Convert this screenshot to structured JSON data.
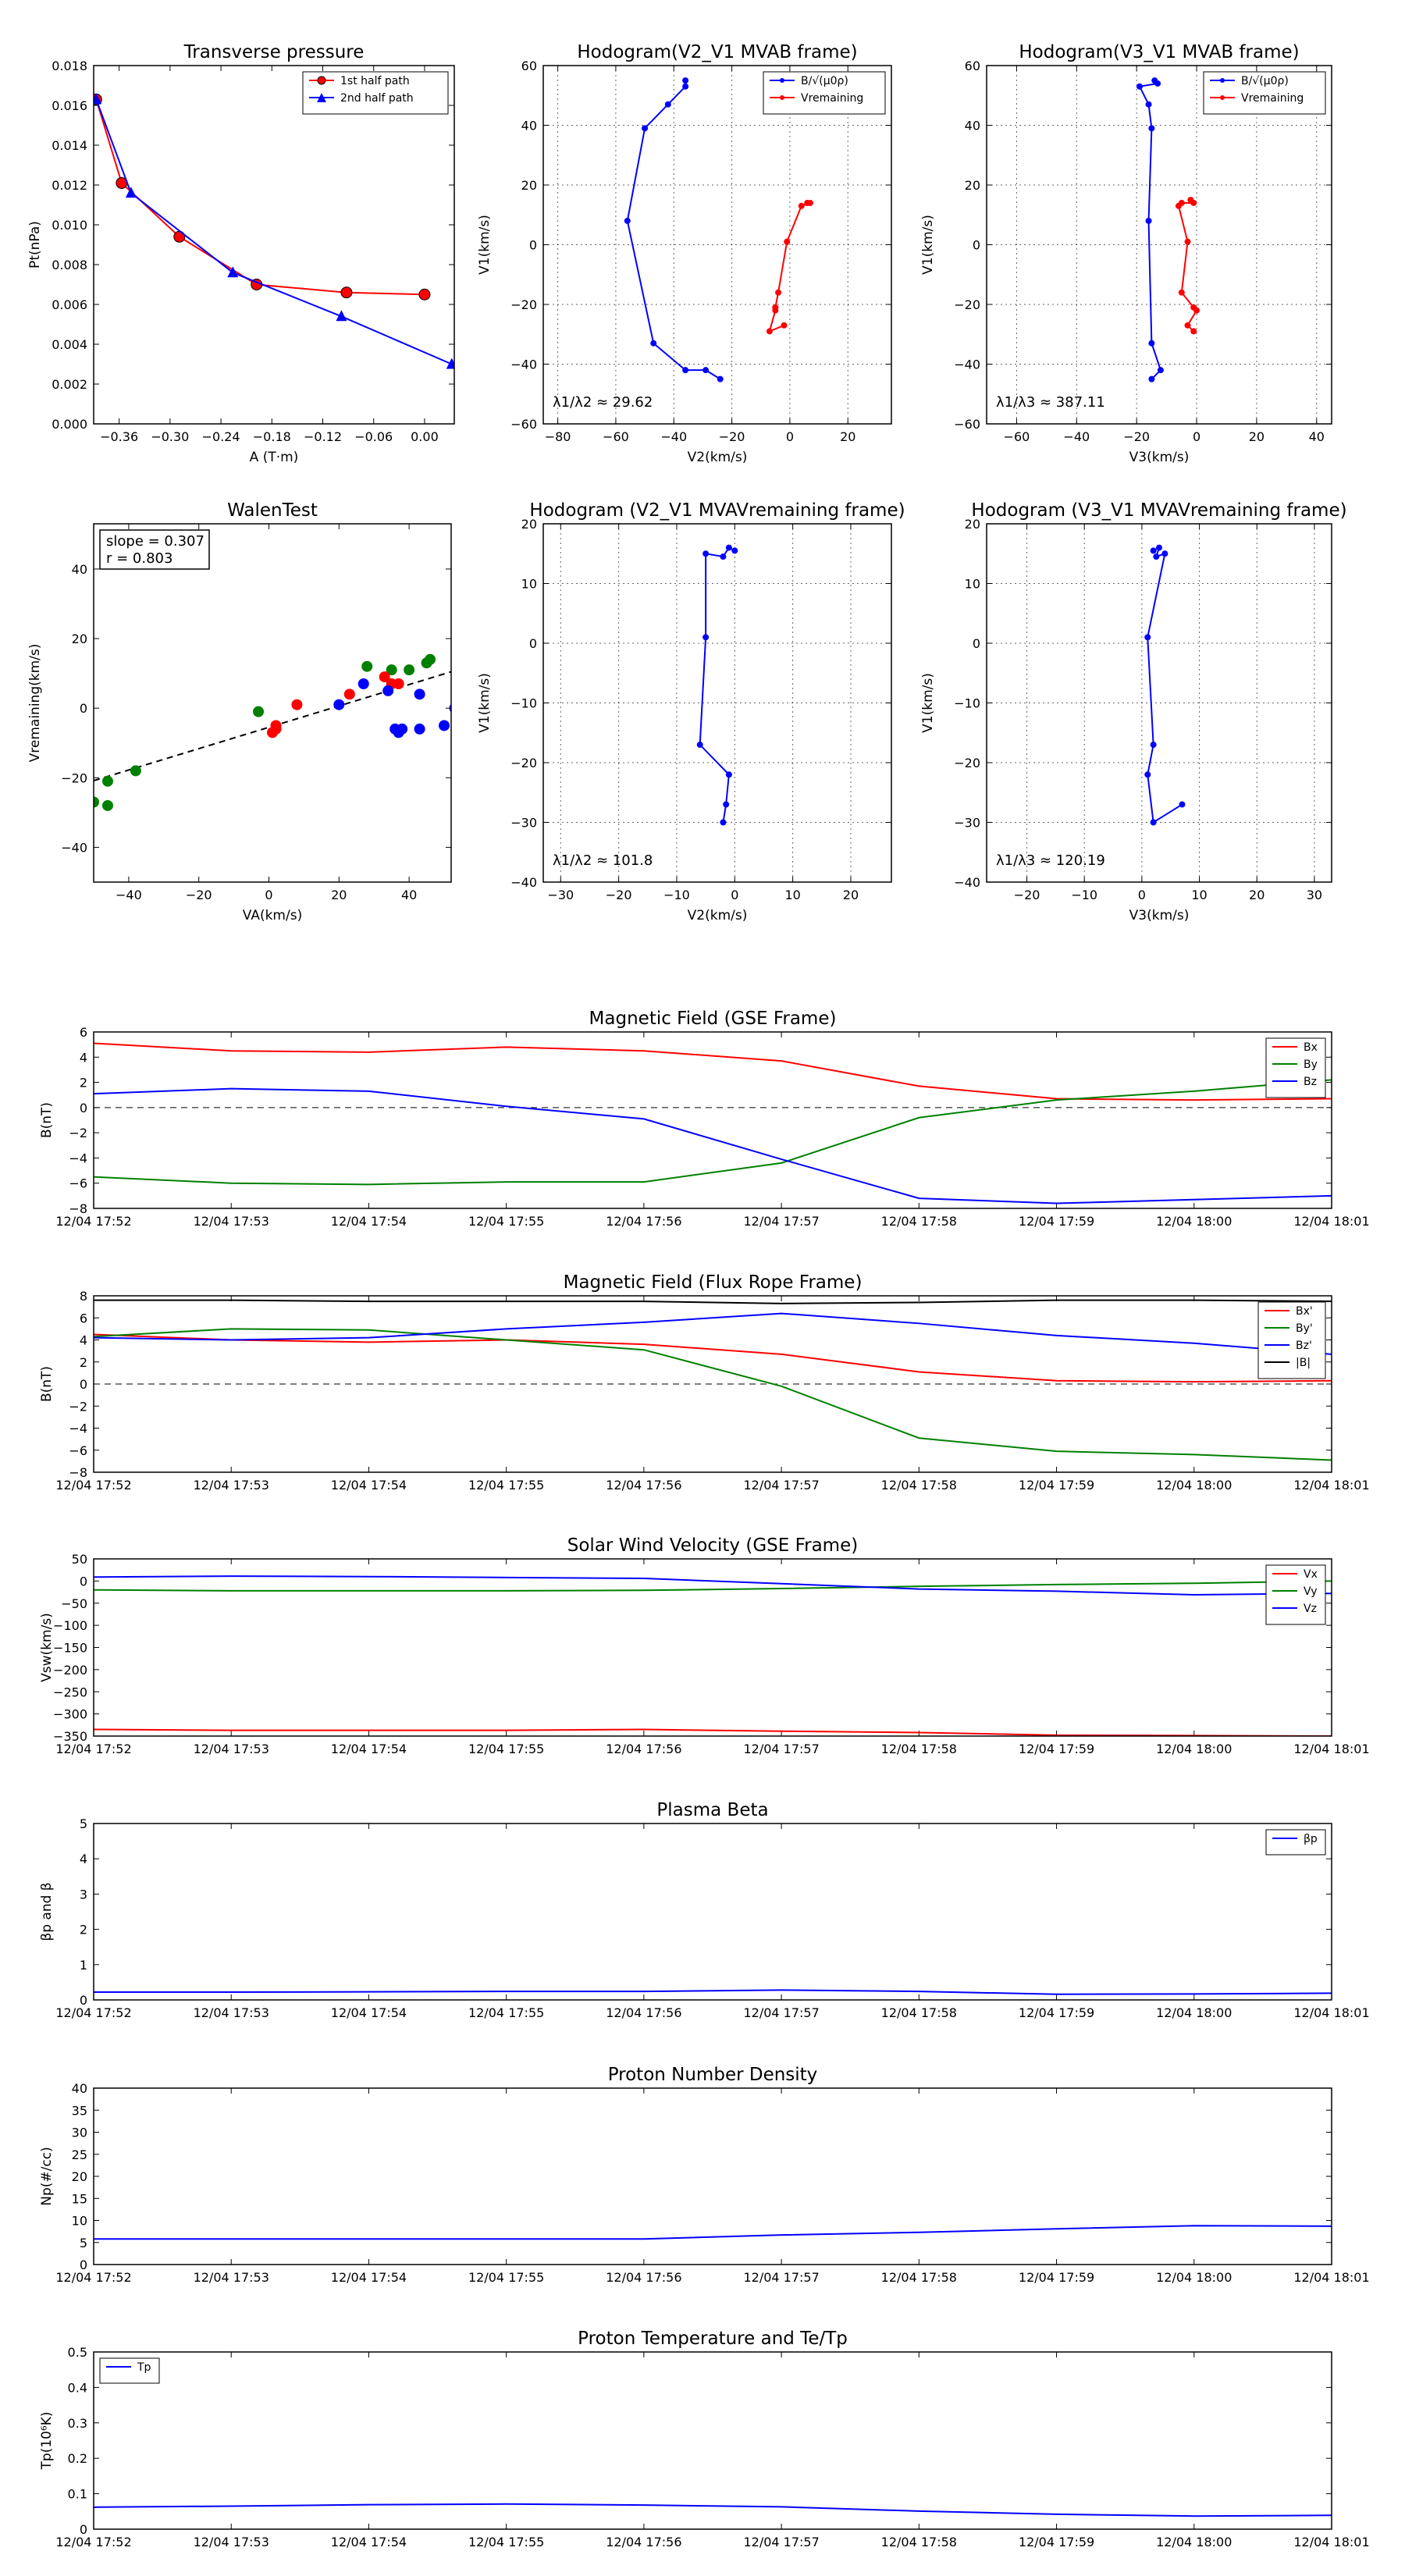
{
  "chart_data": [
    {
      "id": "transverse_pressure",
      "type": "line",
      "title": "Transverse pressure",
      "xlabel": "A (T·m)",
      "ylabel": "Pt(nPa)",
      "xlim": [
        -0.39,
        0.035
      ],
      "ylim": [
        0,
        0.018
      ],
      "xticks": [
        -0.36,
        -0.3,
        -0.24,
        -0.18,
        -0.12,
        -0.06,
        0.0
      ],
      "xticklabels": [
        "−0.36",
        "−0.30",
        "−0.24",
        "−0.18",
        "−0.12",
        "−0.06",
        "0.00"
      ],
      "yticks": [
        0.0,
        0.002,
        0.004,
        0.006,
        0.008,
        0.01,
        0.012,
        0.014,
        0.016,
        0.018
      ],
      "yticklabels": [
        "0.000",
        "0.002",
        "0.004",
        "0.006",
        "0.008",
        "0.010",
        "0.012",
        "0.014",
        "0.016",
        "0.018"
      ],
      "legend_loc": "upper right",
      "grid": false,
      "series": [
        {
          "name": "1st half path",
          "color": "#ff0000",
          "marker": "circle",
          "x": [
            -0.387,
            -0.357,
            -0.289,
            -0.198,
            -0.092,
            0.0
          ],
          "y": [
            0.0163,
            0.0121,
            0.0094,
            0.007,
            0.0066,
            0.0065
          ]
        },
        {
          "name": "2nd half path",
          "color": "#0000ff",
          "marker": "triangle",
          "x": [
            -0.387,
            -0.346,
            -0.226,
            -0.098,
            0.032
          ],
          "y": [
            0.0163,
            0.0116,
            0.0076,
            0.0054,
            0.003
          ]
        }
      ]
    },
    {
      "id": "hodogram_v2v1_mvab",
      "type": "line",
      "title": "Hodogram(V2_V1 MVAB frame)",
      "xlabel": "V2(km/s)",
      "ylabel": "V1(km/s)",
      "xlim": [
        -85,
        35
      ],
      "ylim": [
        -60,
        60
      ],
      "xticks": [
        -80,
        -60,
        -40,
        -20,
        0,
        20
      ],
      "yticks": [
        -60,
        -40,
        -20,
        0,
        20,
        40,
        60
      ],
      "grid": true,
      "legend_loc": "upper right",
      "annotation": "λ1/λ2 ≈ 29.62",
      "series": [
        {
          "name": "B/√(μ0ρ)",
          "color": "#0000ff",
          "marker": "dot",
          "x": [
            -36,
            -36,
            -42,
            -50,
            -56,
            -47,
            -36,
            -29,
            -24
          ],
          "y": [
            55,
            53,
            47,
            39,
            8,
            -33,
            -42,
            -42,
            -45
          ]
        },
        {
          "name": "Vremaining",
          "color": "#ff0000",
          "marker": "dot",
          "x": [
            6,
            7,
            4,
            -1,
            -4,
            -5,
            -5,
            -7,
            -2
          ],
          "y": [
            14,
            14,
            13,
            1,
            -16,
            -21,
            -22,
            -29,
            -27
          ]
        }
      ]
    },
    {
      "id": "hodogram_v3v1_mvab",
      "type": "line",
      "title": "Hodogram(V3_V1 MVAB frame)",
      "xlabel": "V3(km/s)",
      "ylabel": "V1(km/s)",
      "xlim": [
        -70,
        45
      ],
      "ylim": [
        -60,
        60
      ],
      "xticks": [
        -60,
        -40,
        -20,
        0,
        20,
        40
      ],
      "yticks": [
        -60,
        -40,
        -20,
        0,
        20,
        40,
        60
      ],
      "grid": true,
      "legend_loc": "upper right",
      "annotation": "λ1/λ3 ≈ 387.11",
      "series": [
        {
          "name": "B/√(μ0ρ)",
          "color": "#0000ff",
          "marker": "dot",
          "x": [
            -14,
            -13,
            -19,
            -16,
            -15,
            -16,
            -15,
            -12,
            -15
          ],
          "y": [
            55,
            54,
            53,
            47,
            39,
            8,
            -33,
            -42,
            -45
          ]
        },
        {
          "name": "Vremaining",
          "color": "#ff0000",
          "marker": "dot",
          "x": [
            -2,
            -1,
            -5,
            -6,
            -3,
            -5,
            -1,
            0,
            -3,
            -1
          ],
          "y": [
            15,
            14,
            14,
            13,
            1,
            -16,
            -21,
            -22,
            -27,
            -29
          ]
        }
      ]
    },
    {
      "id": "walen_test",
      "type": "scatter",
      "title": "WalenTest",
      "xlabel": "VA(km/s)",
      "ylabel": "Vremaining(km/s)",
      "xlim": [
        -50,
        52
      ],
      "ylim": [
        -50,
        53
      ],
      "xticks": [
        -40,
        -20,
        0,
        20,
        40
      ],
      "yticks": [
        -40,
        -20,
        0,
        20,
        40
      ],
      "grid": false,
      "annotation_lines": [
        "slope = 0.307",
        "r = 0.803"
      ],
      "fit": {
        "slope": 0.307,
        "intercept": -5.5,
        "x": [
          -50,
          52
        ]
      },
      "series": [
        {
          "color": "#008000",
          "x": [
            -50,
            -46,
            -46,
            -38,
            -3,
            28,
            35,
            40,
            45,
            46
          ],
          "y": [
            -27,
            -28,
            -21,
            -18,
            -1,
            12,
            11,
            11,
            13,
            14
          ]
        },
        {
          "color": "#ff0000",
          "x": [
            1,
            2,
            2,
            8,
            23,
            33,
            35,
            37
          ],
          "y": [
            -7,
            -6,
            -5,
            1,
            4,
            9,
            7,
            7
          ]
        },
        {
          "color": "#0000ff",
          "x": [
            20,
            27,
            34,
            36,
            37,
            38,
            43,
            43,
            50,
            53
          ],
          "y": [
            1,
            7,
            5,
            -6,
            -7,
            -6,
            4,
            -6,
            -5,
            0
          ]
        }
      ]
    },
    {
      "id": "hodogram_v2v1_mvav",
      "type": "line",
      "title": "Hodogram (V2_V1 MVAVremaining frame)",
      "xlabel": "V2(km/s)",
      "ylabel": "V1(km/s)",
      "xlim": [
        -33,
        27
      ],
      "ylim": [
        -40,
        20
      ],
      "xticks": [
        -30,
        -20,
        -10,
        0,
        10,
        20
      ],
      "yticks": [
        -40,
        -30,
        -20,
        -10,
        0,
        10,
        20
      ],
      "grid": true,
      "annotation": "λ1/λ2 ≈ 101.8",
      "series": [
        {
          "color": "#0000ff",
          "marker": "dot",
          "x": [
            0,
            -1,
            -2,
            -5,
            -5,
            -6,
            -1,
            -1.5,
            -2
          ],
          "y": [
            15.5,
            16,
            14.5,
            15,
            1,
            -17,
            -22,
            -27,
            -30
          ]
        }
      ]
    },
    {
      "id": "hodogram_v3v1_mvav",
      "type": "line",
      "title": "Hodogram (V3_V1 MVAVremaining frame)",
      "xlabel": "V3(km/s)",
      "ylabel": "V1(km/s)",
      "xlim": [
        -27,
        33
      ],
      "ylim": [
        -40,
        20
      ],
      "xticks": [
        -20,
        -10,
        0,
        10,
        20,
        30
      ],
      "yticks": [
        -40,
        -30,
        -20,
        -10,
        0,
        10,
        20
      ],
      "grid": true,
      "annotation": "λ1/λ3 ≈ 120.19",
      "series": [
        {
          "color": "#0000ff",
          "marker": "dot",
          "x": [
            2,
            3,
            2.5,
            4,
            1,
            2,
            1,
            2,
            7
          ],
          "y": [
            15.5,
            16,
            14.5,
            15,
            1,
            -17,
            -22,
            -30,
            -27
          ]
        }
      ]
    },
    {
      "id": "mag_field_gse",
      "type": "line",
      "title": "Magnetic Field (GSE Frame)",
      "xlabel": "",
      "ylabel": "B(nT)",
      "ylim": [
        -8,
        6
      ],
      "yticks": [
        -8,
        -6,
        -4,
        -2,
        0,
        2,
        4,
        6
      ],
      "categories": [
        "12/04 17:52",
        "12/04 17:53",
        "12/04 17:54",
        "12/04 17:55",
        "12/04 17:56",
        "12/04 17:57",
        "12/04 17:58",
        "12/04 17:59",
        "12/04 18:00",
        "12/04 18:01"
      ],
      "zero_line": true,
      "legend_loc": "upper right",
      "series": [
        {
          "name": "Bx",
          "color": "#ff0000",
          "values": [
            5.1,
            4.5,
            4.4,
            4.8,
            4.5,
            3.7,
            1.7,
            0.7,
            0.6,
            0.7
          ]
        },
        {
          "name": "By",
          "color": "#008000",
          "values": [
            -5.5,
            -6.0,
            -6.1,
            -5.9,
            -5.9,
            -4.4,
            -0.8,
            0.6,
            1.3,
            2.2
          ]
        },
        {
          "name": "Bz",
          "color": "#0000ff",
          "values": [
            1.1,
            1.5,
            1.3,
            0.1,
            -0.9,
            -4.1,
            -7.2,
            -7.6,
            -7.3,
            -7.0
          ]
        }
      ]
    },
    {
      "id": "mag_field_fluxrope",
      "type": "line",
      "title": "Magnetic Field (Flux Rope Frame)",
      "xlabel": "",
      "ylabel": "B(nT)",
      "ylim": [
        -8,
        8
      ],
      "yticks": [
        -8,
        -6,
        -4,
        -2,
        0,
        2,
        4,
        6,
        8
      ],
      "categories": [
        "12/04 17:52",
        "12/04 17:53",
        "12/04 17:54",
        "12/04 17:55",
        "12/04 17:56",
        "12/04 17:57",
        "12/04 17:58",
        "12/04 17:59",
        "12/04 18:00",
        "12/04 18:01"
      ],
      "zero_line": true,
      "legend_loc": "upper right",
      "series": [
        {
          "name": "Bx'",
          "color": "#ff0000",
          "values": [
            4.5,
            4.0,
            3.8,
            4.0,
            3.6,
            2.7,
            1.1,
            0.3,
            0.2,
            0.3
          ]
        },
        {
          "name": "By'",
          "color": "#008000",
          "values": [
            4.3,
            5.0,
            4.9,
            4.0,
            3.1,
            -0.2,
            -4.9,
            -6.1,
            -6.4,
            -6.9
          ]
        },
        {
          "name": "Bz'",
          "color": "#0000ff",
          "values": [
            4.2,
            4.0,
            4.2,
            5.0,
            5.6,
            6.4,
            5.5,
            4.4,
            3.7,
            2.7
          ]
        },
        {
          "name": "|B|",
          "color": "#000000",
          "values": [
            7.6,
            7.6,
            7.5,
            7.5,
            7.5,
            7.3,
            7.4,
            7.6,
            7.6,
            7.5
          ]
        }
      ]
    },
    {
      "id": "solar_wind_velocity",
      "type": "line",
      "title": "Solar Wind Velocity (GSE Frame)",
      "xlabel": "",
      "ylabel": "Vsw(km/s)",
      "ylim": [
        -350,
        50
      ],
      "yticks": [
        -350,
        -300,
        -250,
        -200,
        -150,
        -100,
        -50,
        0,
        50
      ],
      "categories": [
        "12/04 17:52",
        "12/04 17:53",
        "12/04 17:54",
        "12/04 17:55",
        "12/04 17:56",
        "12/04 17:57",
        "12/04 17:58",
        "12/04 17:59",
        "12/04 18:00",
        "12/04 18:01"
      ],
      "legend_loc": "upper right",
      "series": [
        {
          "name": "Vx",
          "color": "#ff0000",
          "values": [
            -335,
            -337,
            -337,
            -337,
            -335,
            -339,
            -342,
            -348,
            -349,
            -350
          ]
        },
        {
          "name": "Vy",
          "color": "#008000",
          "values": [
            -20,
            -22,
            -22,
            -22,
            -21,
            -17,
            -12,
            -8,
            -5,
            0
          ]
        },
        {
          "name": "Vz",
          "color": "#0000ff",
          "values": [
            9,
            11,
            10,
            8,
            6,
            -6,
            -18,
            -23,
            -31,
            -28
          ]
        }
      ]
    },
    {
      "id": "plasma_beta",
      "type": "line",
      "title": "Plasma Beta",
      "xlabel": "",
      "ylabel": "βp and β",
      "ylim": [
        0,
        5
      ],
      "yticks": [
        0,
        1,
        2,
        3,
        4,
        5
      ],
      "categories": [
        "12/04 17:52",
        "12/04 17:53",
        "12/04 17:54",
        "12/04 17:55",
        "12/04 17:56",
        "12/04 17:57",
        "12/04 17:58",
        "12/04 17:59",
        "12/04 18:00",
        "12/04 18:01"
      ],
      "legend_loc": "upper right",
      "series": [
        {
          "name": "βp",
          "color": "#0000ff",
          "values": [
            0.22,
            0.22,
            0.23,
            0.24,
            0.24,
            0.28,
            0.24,
            0.16,
            0.17,
            0.19
          ]
        }
      ]
    },
    {
      "id": "proton_density",
      "type": "line",
      "title": "Proton Number Density",
      "xlabel": "",
      "ylabel": "Np(#/cc)",
      "ylim": [
        0,
        40
      ],
      "yticks": [
        0,
        5,
        10,
        15,
        20,
        25,
        30,
        35,
        40
      ],
      "categories": [
        "12/04 17:52",
        "12/04 17:53",
        "12/04 17:54",
        "12/04 17:55",
        "12/04 17:56",
        "12/04 17:57",
        "12/04 17:58",
        "12/04 17:59",
        "12/04 18:00",
        "12/04 18:01"
      ],
      "series": [
        {
          "color": "#0000ff",
          "values": [
            5.8,
            5.8,
            5.8,
            5.8,
            5.8,
            6.7,
            7.3,
            8.1,
            8.8,
            8.7
          ]
        }
      ]
    },
    {
      "id": "proton_temperature",
      "type": "line",
      "title": "Proton Temperature and Te/Tp",
      "xlabel": "",
      "ylabel": "Tp(10⁶K)",
      "ylim": [
        0,
        0.5
      ],
      "yticks": [
        0.0,
        0.1,
        0.2,
        0.3,
        0.4,
        0.5
      ],
      "categories": [
        "12/04 17:52",
        "12/04 17:53",
        "12/04 17:54",
        "12/04 17:55",
        "12/04 17:56",
        "12/04 17:57",
        "12/04 17:58",
        "12/04 17:59",
        "12/04 18:00",
        "12/04 18:01"
      ],
      "legend_loc": "upper left",
      "series": [
        {
          "name": "Tp",
          "color": "#0000ff",
          "values": [
            0.062,
            0.065,
            0.069,
            0.071,
            0.068,
            0.063,
            0.051,
            0.042,
            0.037,
            0.039
          ]
        }
      ]
    }
  ]
}
